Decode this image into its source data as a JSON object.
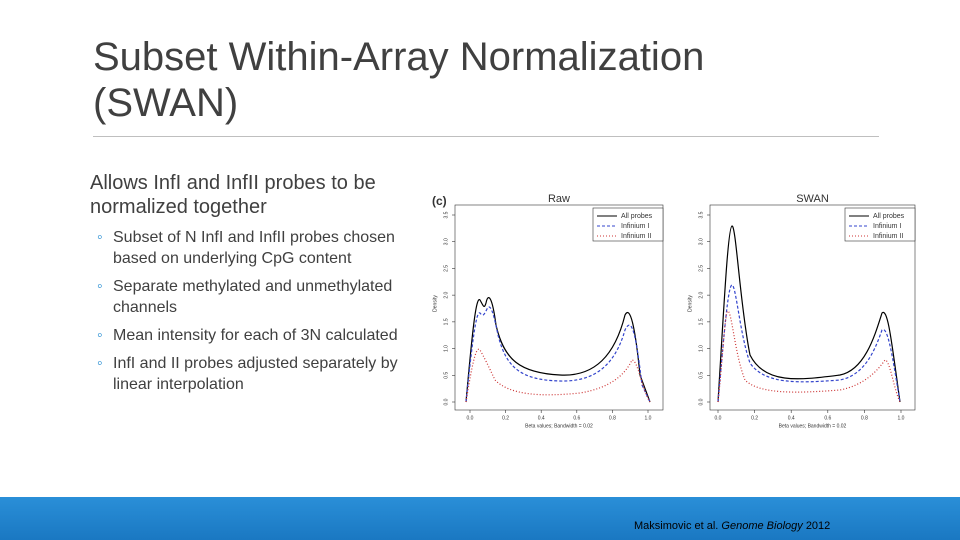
{
  "title": "Subset Within-Array Normalization (SWAN)",
  "bullet": {
    "text": "Allows InfI and InfII probes to be normalized together",
    "subbullets": [
      "Subset of N InfI and InfII probes chosen based on underlying CpG content",
      "Separate methylated and unmethylated channels",
      "Mean intensity for each of 3N calculated",
      "InfI and II probes adjusted separately by linear interpolation"
    ]
  },
  "figure": {
    "label": "(c)",
    "panels": [
      {
        "title": "Raw",
        "ylabel": "Density",
        "xlabel": "Beta values; Bandwidth = 0.02",
        "legend": [
          "All probes",
          "Infinium I",
          "Infinium II"
        ],
        "xticks": [
          {
            "value": 0,
            "label": "0.0"
          },
          {
            "value": 0.2,
            "label": "0.2"
          },
          {
            "value": 0.4,
            "label": "0.4"
          },
          {
            "value": 0.6,
            "label": "0.6"
          },
          {
            "value": 0.8,
            "label": "0.8"
          },
          {
            "value": 1,
            "label": "1.0"
          }
        ],
        "yticks": [
          {
            "value": 0,
            "label": "0.0"
          },
          {
            "value": 0.5,
            "label": "0.5"
          },
          {
            "value": 1,
            "label": "1.0"
          },
          {
            "value": 1.5,
            "label": "1.5"
          },
          {
            "value": 2,
            "label": "2.0"
          },
          {
            "value": 2.5,
            "label": "2.5"
          },
          {
            "value": 3,
            "label": "3.0"
          },
          {
            "value": 3.5,
            "label": "3.5"
          }
        ]
      },
      {
        "title": "SWAN",
        "ylabel": "Density",
        "xlabel": "Beta values; Bandwidth = 0.02",
        "legend": [
          "All probes",
          "Infinium I",
          "Infinium II"
        ],
        "xticks": [
          {
            "value": 0,
            "label": "0.0"
          },
          {
            "value": 0.2,
            "label": "0.2"
          },
          {
            "value": 0.4,
            "label": "0.4"
          },
          {
            "value": 0.6,
            "label": "0.6"
          },
          {
            "value": 0.8,
            "label": "0.8"
          },
          {
            "value": 1,
            "label": "1.0"
          }
        ],
        "yticks": [
          {
            "value": 0,
            "label": "0.0"
          },
          {
            "value": 0.5,
            "label": "0.5"
          },
          {
            "value": 1,
            "label": "1.0"
          },
          {
            "value": 1.5,
            "label": "1.5"
          },
          {
            "value": 2,
            "label": "2.0"
          },
          {
            "value": 2.5,
            "label": "2.5"
          },
          {
            "value": 3,
            "label": "3.0"
          },
          {
            "value": 3.5,
            "label": "3.5"
          }
        ]
      }
    ]
  },
  "citation": {
    "authors": "Maksimovic et al.",
    "journal": "Genome Biology",
    "year": "2012"
  }
}
